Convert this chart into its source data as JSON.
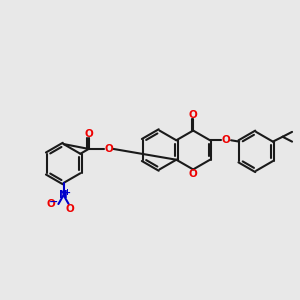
{
  "bg_color": "#e8e8e8",
  "bond_color": "#1a1a1a",
  "oxygen_color": "#ee0000",
  "nitrogen_color": "#0000cc",
  "lw": 1.5,
  "dbo": 0.055,
  "fig_size": [
    3.0,
    3.0
  ],
  "dpi": 100,
  "xlim": [
    -1.5,
    9.5
  ],
  "ylim": [
    0.5,
    6.5
  ]
}
